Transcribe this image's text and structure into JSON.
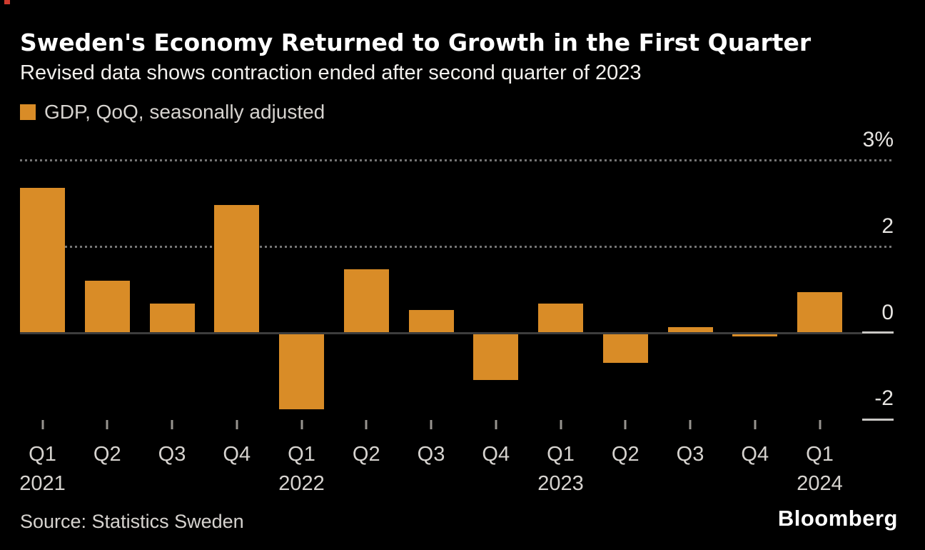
{
  "header": {
    "title": "Sweden's Economy Returned to Growth in the First Quarter",
    "subtitle": "Revised data shows contraction ended after second quarter of 2023"
  },
  "legend": {
    "label": "GDP, QoQ, seasonally adjusted"
  },
  "chart_data": {
    "type": "bar",
    "title": "Sweden's Economy Returned to Growth in the First Quarter",
    "subtitle": "Revised data shows contraction ended after second quarter of 2023",
    "series_name": "GDP, QoQ, seasonally adjusted",
    "categories": [
      "Q1 2021",
      "Q2 2021",
      "Q3 2021",
      "Q4 2021",
      "Q1 2022",
      "Q2 2022",
      "Q3 2022",
      "Q4 2022",
      "Q1 2023",
      "Q2 2023",
      "Q3 2023",
      "Q4 2023",
      "Q1 2024"
    ],
    "quarter_labels": [
      "Q1",
      "Q2",
      "Q3",
      "Q4",
      "Q1",
      "Q2",
      "Q3",
      "Q4",
      "Q1",
      "Q2",
      "Q3",
      "Q4",
      "Q1"
    ],
    "year_labels": [
      "2021",
      null,
      null,
      null,
      "2022",
      null,
      null,
      null,
      "2023",
      null,
      null,
      null,
      "2024"
    ],
    "values": [
      2.5,
      0.9,
      0.5,
      2.2,
      -1.3,
      1.1,
      0.4,
      -0.8,
      0.5,
      -0.5,
      0.1,
      -0.05,
      0.7
    ],
    "unit": "%",
    "y_tick_labels": [
      "3%",
      "2",
      "0",
      "-2"
    ],
    "ylim": [
      -2.5,
      3.5
    ],
    "grid": "horizontal-dotted",
    "legend_position": "top-left",
    "xlabel": "",
    "ylabel": ""
  },
  "footer": {
    "source": "Source: Statistics Sweden",
    "logo": "Bloomberg"
  },
  "colors": {
    "bar_orange": "#d98c27",
    "corner_red": "#cf3b2e",
    "background": "#000000"
  }
}
